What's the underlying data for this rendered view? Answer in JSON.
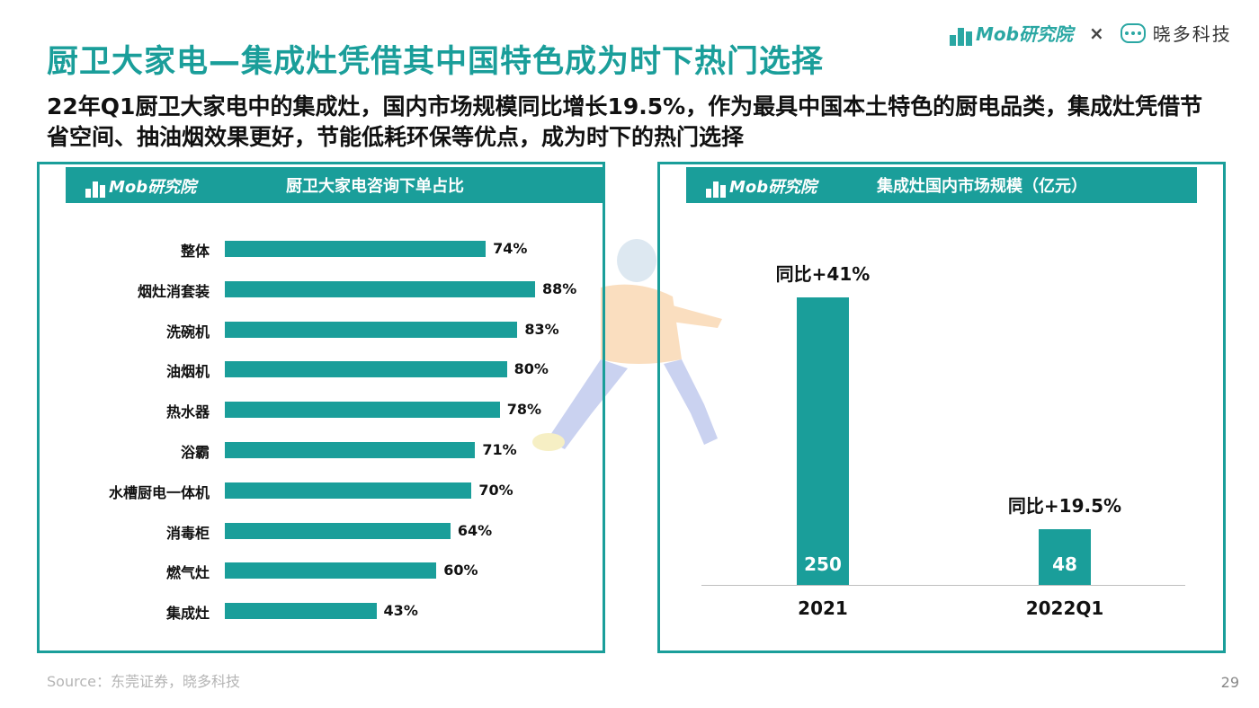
{
  "header": {
    "title": "厨卫大家电—集成灶凭借其中国特色成为时下热门选择",
    "subtitle": "22年Q1厨卫大家电中的集成灶，国内市场规模同比增长19.5%，作为最具中国本土特色的厨电品类，集成灶凭借节省空间、抽油烟效果更好，节能低耗环保等优点，成为时下的热门选择",
    "brand_mob": "Mob研究院",
    "brand_times": "×",
    "brand_xd": "晓多科技"
  },
  "left_panel": {
    "header_brand": "Mob研究院",
    "header_title": "厨卫大家电咨询下单占比"
  },
  "right_panel": {
    "header_brand": "Mob研究院",
    "header_title": "集成灶国内市场规模（亿元）"
  },
  "chart_data": [
    {
      "type": "bar",
      "orientation": "horizontal",
      "title": "厨卫大家电咨询下单占比",
      "categories": [
        "整体",
        "烟灶消套装",
        "洗碗机",
        "油烟机",
        "热水器",
        "浴霸",
        "水槽厨电一体机",
        "消毒柜",
        "燃气灶",
        "集成灶"
      ],
      "values": [
        74,
        88,
        83,
        80,
        78,
        71,
        70,
        64,
        60,
        43
      ],
      "value_labels": [
        "74%",
        "88%",
        "83%",
        "80%",
        "78%",
        "71%",
        "70%",
        "64%",
        "60%",
        "43%"
      ],
      "unit": "%",
      "color": "#1a9e9a"
    },
    {
      "type": "bar",
      "orientation": "vertical",
      "title": "集成灶国内市场规模（亿元）",
      "categories": [
        "2021",
        "2022Q1"
      ],
      "values": [
        250,
        48
      ],
      "value_labels": [
        "250",
        "48"
      ],
      "annotations": [
        "同比+41%",
        "同比+19.5%"
      ],
      "color": "#1a9e9a"
    }
  ],
  "footer": {
    "source": "Source：东莞证券，晓多科技",
    "page": "29"
  }
}
